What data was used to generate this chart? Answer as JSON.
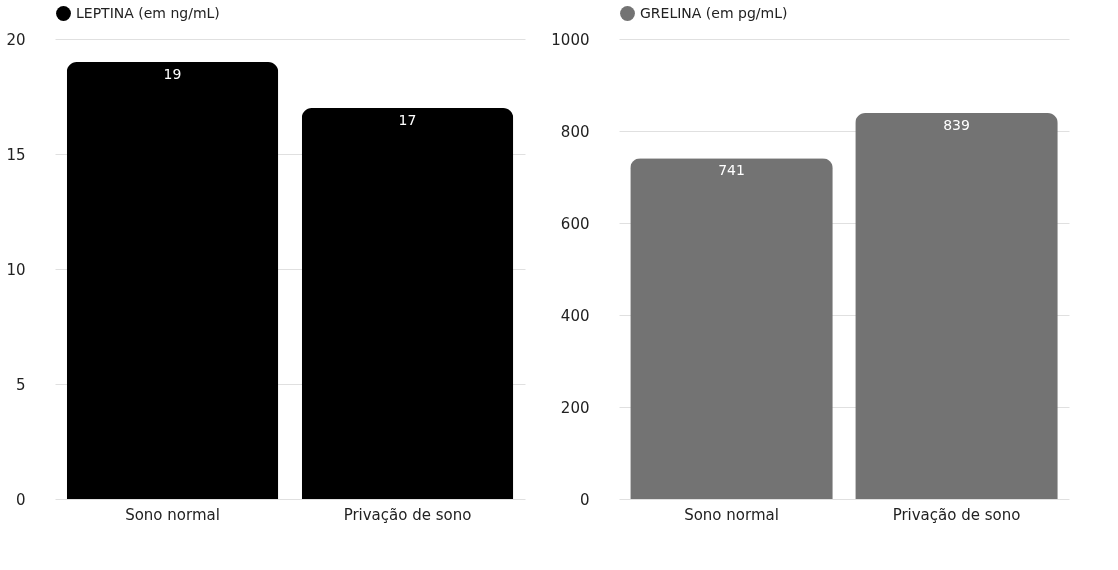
{
  "chart_data": [
    {
      "type": "bar",
      "categories": [
        "Sono normal",
        "Privação de sono"
      ],
      "series": [
        {
          "name": "LEPTINA (em ng/mL)",
          "color": "#000000",
          "values": [
            19,
            17
          ]
        }
      ],
      "ylim": [
        0,
        20
      ],
      "yticks": [
        0,
        5,
        10,
        15,
        20
      ],
      "grid": "y",
      "legend": "top",
      "data_labels": true
    },
    {
      "type": "bar",
      "categories": [
        "Sono normal",
        "Privação de sono"
      ],
      "series": [
        {
          "name": "GRELINA (em pg/mL)",
          "color": "#737373",
          "values": [
            741,
            839
          ]
        }
      ],
      "ylim": [
        0,
        1000
      ],
      "yticks": [
        0,
        200,
        400,
        600,
        800,
        1000
      ],
      "grid": "y",
      "legend": "top",
      "data_labels": true
    }
  ]
}
